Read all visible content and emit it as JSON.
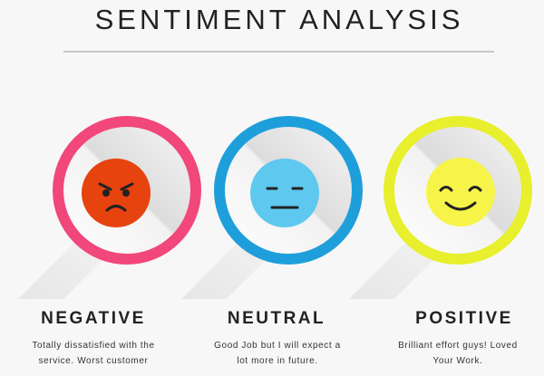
{
  "title": "SENTIMENT ANALYSIS",
  "cards": [
    {
      "label": "NEGATIVE",
      "text": [
        "Totally dissatisfied with the",
        "service. Worst customer"
      ]
    },
    {
      "label": "NEUTRAL",
      "text": [
        "Good Job but I will expect a",
        "lot more in future."
      ]
    },
    {
      "label": "POSITIVE",
      "text": [
        "Brilliant effort guys! Loved",
        "Your Work."
      ]
    }
  ]
}
